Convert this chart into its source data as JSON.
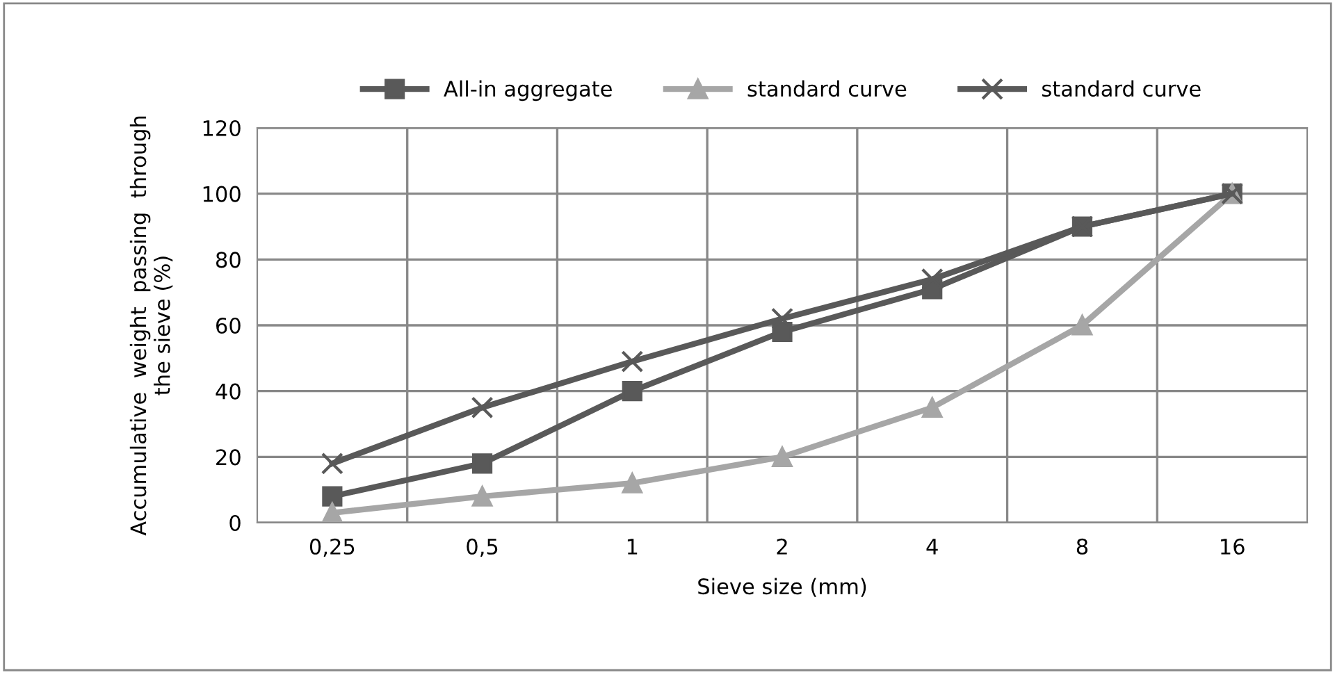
{
  "chart_data": {
    "type": "line",
    "xlabel": "Sieve size (mm)",
    "ylabel": "Accumulative  weight  passing  through\nthe sieve (%)",
    "categories": [
      "0,25",
      "0,5",
      "1",
      "2",
      "4",
      "8",
      "16"
    ],
    "series": [
      {
        "name": "All-in aggregate",
        "color": "#595959",
        "marker": "square",
        "values": [
          8,
          18,
          40,
          58,
          71,
          90,
          100
        ]
      },
      {
        "name": "standard curve",
        "color": "#a6a6a6",
        "marker": "triangle",
        "values": [
          3,
          8,
          12,
          20,
          35,
          60,
          100
        ]
      },
      {
        "name": "standard curve",
        "color": "#595959",
        "marker": "cross",
        "values": [
          18,
          35,
          49,
          62,
          74,
          90,
          100
        ]
      }
    ],
    "ylim": [
      0,
      120
    ],
    "yticks": [
      0,
      20,
      40,
      60,
      80,
      100,
      120
    ],
    "grid": true,
    "legend": "top",
    "line_style": "solid"
  }
}
